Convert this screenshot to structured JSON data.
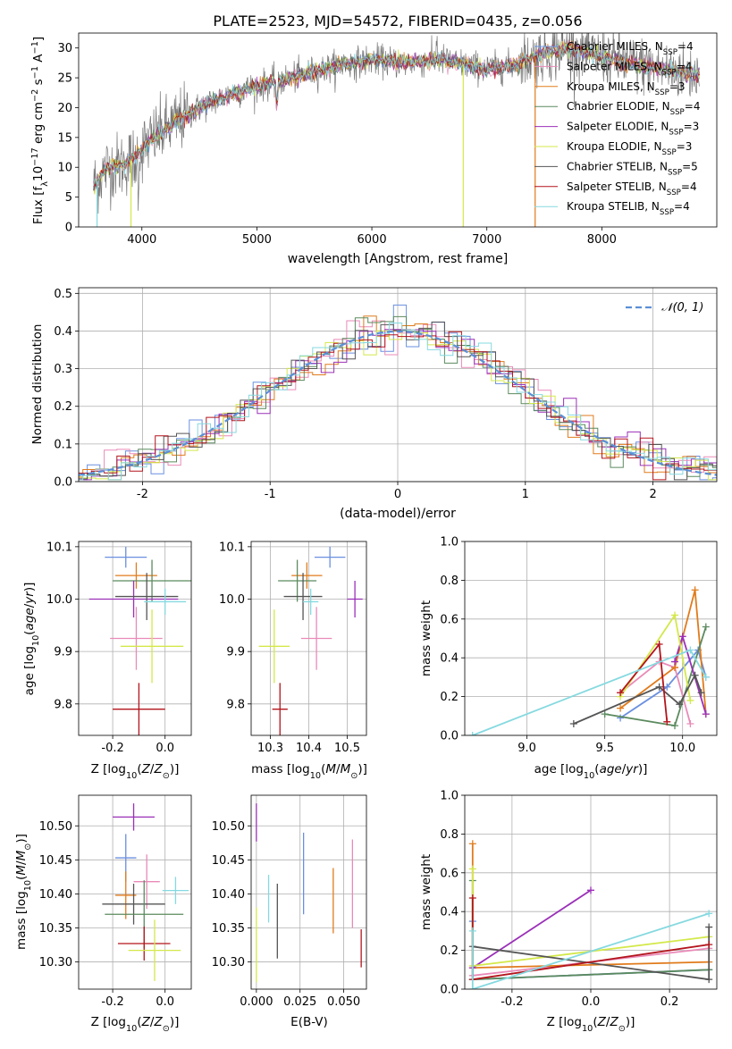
{
  "page_title": "PLATE=2523, MJD=54572, FIBERID=0435, z=0.056",
  "colors": {
    "Chabrier MILES": "#6a8fe0",
    "Salpeter MILES": "#e98ab8",
    "Kroupa MILES": "#e07b1c",
    "Chabrier ELODIE": "#5b8a5e",
    "Salpeter ELODIE": "#9b30b8",
    "Kroupa ELODIE": "#d4e84a",
    "Chabrier STELIB": "#555555",
    "Salpeter STELIB": "#b3141c",
    "Kroupa STELIB": "#85d9e0"
  },
  "legend_top": [
    {
      "name": "Chabrier MILES",
      "n": "4"
    },
    {
      "name": "Salpeter MILES",
      "n": "4"
    },
    {
      "name": "Kroupa MILES",
      "n": "3"
    },
    {
      "name": "Chabrier ELODIE",
      "n": "4"
    },
    {
      "name": "Salpeter ELODIE",
      "n": "3"
    },
    {
      "name": "Kroupa ELODIE",
      "n": "3"
    },
    {
      "name": "Chabrier STELIB",
      "n": "5"
    },
    {
      "name": "Salpeter STELIB",
      "n": "4"
    },
    {
      "name": "Kroupa STELIB",
      "n": "4"
    }
  ],
  "chart_data": [
    {
      "id": "spectrum",
      "type": "line",
      "title": "PLATE=2523, MJD=54572, FIBERID=0435, z=0.056",
      "xlabel": "wavelength [Angstrom, rest frame]",
      "ylabel": "Flux [f_λ 10^-17 erg cm^-2 s^-1 A^-1]",
      "xlim": [
        3450,
        9000
      ],
      "ylim": [
        0,
        32.5
      ],
      "xticks": [
        4000,
        5000,
        6000,
        7000,
        8000
      ],
      "yticks": [
        0,
        5,
        10,
        15,
        20,
        25,
        30
      ],
      "grid": false,
      "legend_position": "right",
      "continuum": [
        [
          3580,
          7
        ],
        [
          3700,
          10
        ],
        [
          3850,
          10.5
        ],
        [
          3950,
          12
        ],
        [
          4100,
          15
        ],
        [
          4300,
          17.5
        ],
        [
          4500,
          20
        ],
        [
          4800,
          22.5
        ],
        [
          5100,
          24
        ],
        [
          5400,
          25.5
        ],
        [
          5700,
          27
        ],
        [
          6000,
          28
        ],
        [
          6300,
          27.5
        ],
        [
          6600,
          28
        ],
        [
          7000,
          26.5
        ],
        [
          7200,
          27
        ],
        [
          7500,
          29
        ],
        [
          7700,
          30
        ],
        [
          7900,
          29
        ],
        [
          8100,
          28
        ],
        [
          8500,
          26.5
        ],
        [
          8850,
          25.5
        ]
      ]
    },
    {
      "id": "residuals",
      "type": "histogram",
      "xlabel": "(data-model)/error",
      "ylabel": "Normed distribution",
      "xlim": [
        -2.5,
        2.5
      ],
      "ylim": [
        0,
        0.515
      ],
      "xticks": [
        -2,
        -1,
        0,
        1,
        2
      ],
      "yticks": [
        0,
        0.1,
        0.2,
        0.3,
        0.4,
        0.5
      ],
      "grid": true,
      "legend_position": "top-right",
      "legend": "𝒩(0, 1)",
      "reference_curve": "N(0,1)"
    },
    {
      "id": "age-vs-Z",
      "type": "errorbar",
      "xlabel": "Z [log10(Z/Z⊙)]",
      "ylabel": "age  [log10(age/yr)]",
      "xlim": [
        -0.33,
        0.1
      ],
      "ylim": [
        9.74,
        10.11
      ],
      "xticks": [
        -0.2,
        0.0
      ],
      "yticks": [
        9.8,
        9.9,
        10.0,
        10.1
      ],
      "grid": true,
      "points": [
        {
          "s": "Chabrier MILES",
          "x": -0.15,
          "xerr": 0.08,
          "y": 10.08,
          "yerr": 0.02
        },
        {
          "s": "Kroupa MILES",
          "x": -0.11,
          "xerr": 0.08,
          "y": 10.045,
          "yerr": 0.025
        },
        {
          "s": "Chabrier ELODIE",
          "x": -0.05,
          "xerr": 0.15,
          "y": 10.035,
          "yerr": 0.04
        },
        {
          "s": "Salpeter ELODIE",
          "x": -0.12,
          "xerr": 0.17,
          "y": 10.0,
          "yerr": 0.035
        },
        {
          "s": "Chabrier STELIB",
          "x": -0.07,
          "xerr": 0.12,
          "y": 10.005,
          "yerr": 0.045
        },
        {
          "s": "Kroupa STELIB",
          "x": 0.0,
          "xerr": 0.08,
          "y": 9.995,
          "yerr": 0.025
        },
        {
          "s": "Salpeter MILES",
          "x": -0.11,
          "xerr": 0.1,
          "y": 9.925,
          "yerr": 0.06
        },
        {
          "s": "Kroupa ELODIE",
          "x": -0.05,
          "xerr": 0.12,
          "y": 9.91,
          "yerr": 0.07
        },
        {
          "s": "Salpeter STELIB",
          "x": -0.1,
          "xerr": 0.1,
          "y": 9.79,
          "yerr": 0.05
        }
      ]
    },
    {
      "id": "age-vs-mass",
      "type": "errorbar",
      "xlabel": "mass [log10(M/M⊙)]",
      "ylabel": "",
      "xlim": [
        10.25,
        10.55
      ],
      "ylim": [
        9.74,
        10.11
      ],
      "xticks": [
        10.3,
        10.4,
        10.5
      ],
      "yticks": [
        9.8,
        9.9,
        10.0,
        10.1
      ],
      "grid": true,
      "points": [
        {
          "s": "Chabrier MILES",
          "x": 10.455,
          "xerr": 0.04,
          "y": 10.08,
          "yerr": 0.02
        },
        {
          "s": "Kroupa MILES",
          "x": 10.395,
          "xerr": 0.04,
          "y": 10.045,
          "yerr": 0.025
        },
        {
          "s": "Chabrier ELODIE",
          "x": 10.37,
          "xerr": 0.05,
          "y": 10.035,
          "yerr": 0.04
        },
        {
          "s": "Salpeter ELODIE",
          "x": 10.52,
          "xerr": 0.02,
          "y": 10.0,
          "yerr": 0.035
        },
        {
          "s": "Chabrier STELIB",
          "x": 10.385,
          "xerr": 0.05,
          "y": 10.005,
          "yerr": 0.045
        },
        {
          "s": "Kroupa STELIB",
          "x": 10.405,
          "xerr": 0.02,
          "y": 9.995,
          "yerr": 0.025
        },
        {
          "s": "Salpeter MILES",
          "x": 10.42,
          "xerr": 0.04,
          "y": 9.925,
          "yerr": 0.06
        },
        {
          "s": "Kroupa ELODIE",
          "x": 10.31,
          "xerr": 0.04,
          "y": 9.91,
          "yerr": 0.07
        },
        {
          "s": "Salpeter STELIB",
          "x": 10.325,
          "xerr": 0.02,
          "y": 9.79,
          "yerr": 0.05
        }
      ]
    },
    {
      "id": "mass-weight-vs-age",
      "type": "line",
      "xlabel": "age  [log10(age/yr)]",
      "ylabel": "mass weight",
      "xlim": [
        8.6,
        10.22
      ],
      "ylim": [
        0,
        1.0
      ],
      "xticks": [
        9.0,
        9.5,
        10.0
      ],
      "yticks": [
        0.0,
        0.2,
        0.4,
        0.6,
        0.8,
        1.0
      ],
      "grid": true,
      "series": [
        {
          "s": "Chabrier MILES",
          "points": [
            [
              9.6,
              0.09
            ],
            [
              9.9,
              0.25
            ],
            [
              10.1,
              0.44
            ],
            [
              10.15,
              0.3
            ]
          ]
        },
        {
          "s": "Salpeter MILES",
          "points": [
            [
              9.6,
              0.22
            ],
            [
              9.85,
              0.38
            ],
            [
              9.95,
              0.35
            ],
            [
              10.05,
              0.06
            ]
          ]
        },
        {
          "s": "Kroupa MILES",
          "points": [
            [
              9.6,
              0.14
            ],
            [
              9.95,
              0.35
            ],
            [
              10.08,
              0.75
            ],
            [
              10.15,
              0.11
            ]
          ]
        },
        {
          "s": "Chabrier ELODIE",
          "points": [
            [
              9.5,
              0.11
            ],
            [
              9.95,
              0.05
            ],
            [
              10.15,
              0.56
            ]
          ]
        },
        {
          "s": "Salpeter ELODIE",
          "points": [
            [
              9.95,
              0.38
            ],
            [
              10.0,
              0.51
            ],
            [
              10.15,
              0.11
            ]
          ]
        },
        {
          "s": "Kroupa ELODIE",
          "points": [
            [
              9.6,
              0.2
            ],
            [
              9.95,
              0.62
            ],
            [
              10.05,
              0.18
            ]
          ]
        },
        {
          "s": "Chabrier STELIB",
          "points": [
            [
              9.3,
              0.06
            ],
            [
              9.85,
              0.25
            ],
            [
              9.98,
              0.16
            ],
            [
              10.08,
              0.31
            ],
            [
              10.12,
              0.22
            ]
          ]
        },
        {
          "s": "Salpeter STELIB",
          "points": [
            [
              9.6,
              0.22
            ],
            [
              9.85,
              0.47
            ],
            [
              9.9,
              0.07
            ]
          ]
        },
        {
          "s": "Kroupa STELIB",
          "points": [
            [
              8.65,
              0.0
            ],
            [
              10.05,
              0.44
            ],
            [
              10.15,
              0.3
            ]
          ]
        }
      ]
    },
    {
      "id": "mass-vs-Z",
      "type": "errorbar",
      "xlabel": "Z [log10(Z/Z⊙)]",
      "ylabel": "mass [log10(M/M⊙)]",
      "xlim": [
        -0.33,
        0.1
      ],
      "ylim": [
        10.26,
        10.545
      ],
      "xticks": [
        -0.2,
        0.0
      ],
      "yticks": [
        10.3,
        10.35,
        10.4,
        10.45,
        10.5
      ],
      "grid": true,
      "points": [
        {
          "s": "Salpeter ELODIE",
          "x": -0.12,
          "xerr": 0.08,
          "y": 10.513,
          "yerr": 0.02
        },
        {
          "s": "Chabrier MILES",
          "x": -0.15,
          "xerr": 0.04,
          "y": 10.453,
          "yerr": 0.035
        },
        {
          "s": "Salpeter MILES",
          "x": -0.07,
          "xerr": 0.05,
          "y": 10.418,
          "yerr": 0.04
        },
        {
          "s": "Kroupa STELIB",
          "x": 0.04,
          "xerr": 0.05,
          "y": 10.405,
          "yerr": 0.02
        },
        {
          "s": "Kroupa MILES",
          "x": -0.15,
          "xerr": 0.04,
          "y": 10.398,
          "yerr": 0.035
        },
        {
          "s": "Chabrier STELIB",
          "x": -0.12,
          "xerr": 0.12,
          "y": 10.385,
          "yerr": 0.03
        },
        {
          "s": "Chabrier ELODIE",
          "x": -0.08,
          "xerr": 0.15,
          "y": 10.37,
          "yerr": 0.05
        },
        {
          "s": "Salpeter STELIB",
          "x": -0.08,
          "xerr": 0.1,
          "y": 10.327,
          "yerr": 0.025
        },
        {
          "s": "Kroupa ELODIE",
          "x": -0.04,
          "xerr": 0.1,
          "y": 10.317,
          "yerr": 0.045
        }
      ]
    },
    {
      "id": "mass-vs-EBV",
      "type": "errorbar",
      "xlabel": "E(B-V)",
      "ylabel": "",
      "xlim": [
        -0.003,
        0.063
      ],
      "ylim": [
        10.26,
        10.545
      ],
      "xticks": [
        0.0,
        0.025,
        0.05
      ],
      "yticks": [
        10.3,
        10.35,
        10.4,
        10.45,
        10.5
      ],
      "grid": true,
      "points": [
        {
          "s": "Salpeter ELODIE",
          "x": 0.0,
          "xerr": 0,
          "y": 10.505,
          "yerr": 0.028
        },
        {
          "s": "Kroupa ELODIE",
          "x": 0.0,
          "xerr": 0,
          "y": 10.325,
          "yerr": 0.055
        },
        {
          "s": "Kroupa STELIB",
          "x": 0.007,
          "xerr": 0,
          "y": 10.393,
          "yerr": 0.035
        },
        {
          "s": "Chabrier STELIB",
          "x": 0.012,
          "xerr": 0,
          "y": 10.36,
          "yerr": 0.055
        },
        {
          "s": "Chabrier MILES",
          "x": 0.027,
          "xerr": 0,
          "y": 10.43,
          "yerr": 0.06
        },
        {
          "s": "Kroupa MILES",
          "x": 0.044,
          "xerr": 0,
          "y": 10.39,
          "yerr": 0.048
        },
        {
          "s": "Salpeter MILES",
          "x": 0.055,
          "xerr": 0,
          "y": 10.415,
          "yerr": 0.065
        },
        {
          "s": "Salpeter STELIB",
          "x": 0.06,
          "xerr": 0,
          "y": 10.32,
          "yerr": 0.028
        }
      ]
    },
    {
      "id": "mass-weight-vs-Z",
      "type": "line",
      "xlabel": "Z [log10(Z/Z⊙)]",
      "ylabel": "mass weight",
      "xlim": [
        -0.32,
        0.32
      ],
      "ylim": [
        0,
        1.0
      ],
      "xticks": [
        -0.2,
        0.0,
        0.2
      ],
      "yticks": [
        0.0,
        0.2,
        0.4,
        0.6,
        0.8,
        1.0
      ],
      "grid": true,
      "series": [
        {
          "s": "Chabrier MILES",
          "points": [
            [
              -0.3,
              0.35
            ],
            [
              -0.3,
              0.05
            ],
            [
              0.3,
              0.1
            ]
          ]
        },
        {
          "s": "Salpeter MILES",
          "points": [
            [
              -0.3,
              0.07
            ],
            [
              0.3,
              0.21
            ]
          ]
        },
        {
          "s": "Kroupa MILES",
          "points": [
            [
              -0.3,
              0.75
            ],
            [
              -0.3,
              0.11
            ],
            [
              0.3,
              0.14
            ]
          ]
        },
        {
          "s": "Chabrier ELODIE",
          "points": [
            [
              -0.3,
              0.56
            ],
            [
              -0.3,
              0.05
            ],
            [
              0.3,
              0.1
            ]
          ]
        },
        {
          "s": "Salpeter ELODIE",
          "points": [
            [
              -0.3,
              0.11
            ],
            [
              0.0,
              0.51
            ]
          ]
        },
        {
          "s": "Kroupa ELODIE",
          "points": [
            [
              -0.3,
              0.62
            ],
            [
              -0.3,
              0.12
            ],
            [
              0.3,
              0.27
            ]
          ]
        },
        {
          "s": "Chabrier STELIB",
          "points": [
            [
              -0.3,
              0.22
            ],
            [
              0.3,
              0.05
            ],
            [
              0.3,
              0.32
            ]
          ]
        },
        {
          "s": "Salpeter STELIB",
          "points": [
            [
              -0.3,
              0.47
            ],
            [
              -0.3,
              0.05
            ],
            [
              0.3,
              0.23
            ]
          ]
        },
        {
          "s": "Kroupa STELIB",
          "points": [
            [
              -0.3,
              0.3
            ],
            [
              -0.3,
              0.0
            ],
            [
              0.3,
              0.39
            ]
          ]
        }
      ]
    }
  ]
}
